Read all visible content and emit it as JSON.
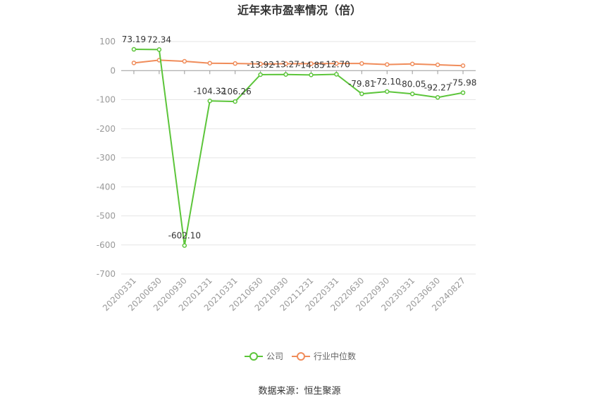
{
  "chart_data": {
    "type": "line",
    "title": "近年来市盈率情况（倍）",
    "categories": [
      "20200331",
      "20200630",
      "20200930",
      "20201231",
      "20210331",
      "20210630",
      "20210930",
      "20211231",
      "20220331",
      "20220630",
      "20220930",
      "20230331",
      "20230630",
      "20240827"
    ],
    "ylim": [
      -700,
      100
    ],
    "yticks": [
      100,
      0,
      -100,
      -200,
      -300,
      -400,
      -500,
      -600,
      -700
    ],
    "grid": true,
    "legend_position": "bottom",
    "series": [
      {
        "name": "公司",
        "color": "#5cc53a",
        "values": [
          73.19,
          72.34,
          -602.1,
          -104.32,
          -106.26,
          -13.92,
          -13.27,
          -14.85,
          -12.7,
          -79.81,
          -72.1,
          -80.05,
          -92.27,
          -75.98
        ],
        "labels": [
          "73.19",
          "72.34",
          "-602.10",
          "-104.32",
          "-106.26",
          "-13.92",
          "-13.27",
          "-14.85",
          "-12.70",
          "-79.81",
          "-72.10",
          "-80.05",
          "-92.27",
          "-75.98"
        ]
      },
      {
        "name": "行业中位数",
        "color": "#f08c5a",
        "values": [
          26.5,
          36.0,
          32.0,
          25.5,
          24.5,
          23.0,
          23.5,
          24.0,
          24.5,
          24.5,
          21.0,
          23.0,
          20.0,
          17.0
        ]
      }
    ]
  },
  "source": "数据来源：恒生聚源"
}
